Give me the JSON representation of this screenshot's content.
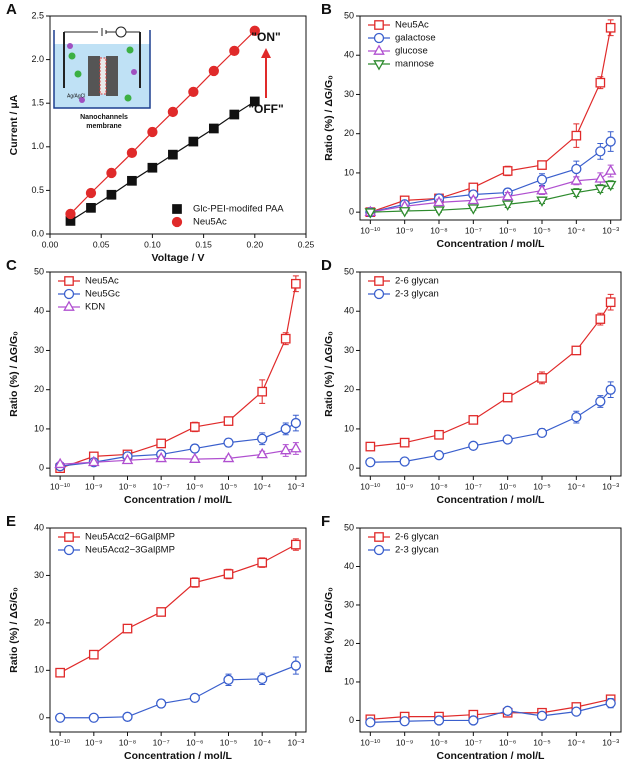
{
  "chart_data": [
    {
      "type": "line",
      "panel": "A",
      "xlabel": "Voltage / V",
      "ylabel": "Current / μA",
      "x": [
        0.02,
        0.04,
        0.06,
        0.08,
        0.1,
        0.12,
        0.14,
        0.16,
        0.18,
        0.2
      ],
      "series": [
        {
          "name": "Glc-PEI-modifed PAA",
          "color": "#111111",
          "marker": "square",
          "values": [
            0.15,
            0.3,
            0.45,
            0.61,
            0.76,
            0.91,
            1.06,
            1.21,
            1.37,
            1.52
          ]
        },
        {
          "name": "Neu5Ac",
          "color": "#e02a2a",
          "marker": "circle",
          "values": [
            0.23,
            0.47,
            0.7,
            0.93,
            1.17,
            1.4,
            1.63,
            1.87,
            2.1,
            2.33
          ]
        }
      ],
      "markers_filled": true,
      "legend": "lower right",
      "xlim": [
        0,
        0.25
      ],
      "xticks": [
        {
          "value": 0,
          "label": "0.00"
        },
        0.05,
        {
          "value": 0.1,
          "label": "0.10"
        },
        0.15,
        {
          "value": 0.2,
          "label": "0.20"
        },
        0.25
      ],
      "ylim": [
        0,
        2.5
      ],
      "yticks": [
        {
          "value": 0,
          "label": "0.0"
        },
        0.5,
        {
          "value": 1,
          "label": "1.0"
        },
        1.5,
        {
          "value": 2,
          "label": "2.0"
        },
        2.5
      ],
      "annotations": [
        "\"ON\"",
        "\"OFF\"",
        "Ag/AgCl",
        "Nanochannels",
        "membrane"
      ]
    },
    {
      "type": "line",
      "panel": "B",
      "xlabel": "Concentration / mol/L",
      "ylabel": "Ratio (%) / ΔG/G₀",
      "xscale": "log",
      "x": [
        1e-10,
        1e-09,
        1e-08,
        1e-07,
        1e-06,
        1e-05,
        0.0001,
        0.0005,
        0.001
      ],
      "series": [
        {
          "name": "Neu5Ac",
          "color": "#e02a2a",
          "marker": "square",
          "values": [
            0,
            3,
            3.5,
            6.3,
            10.5,
            12,
            19.5,
            33,
            47
          ],
          "errors": [
            0.8,
            1,
            1,
            1,
            1.2,
            1,
            3,
            1.5,
            2
          ]
        },
        {
          "name": "galactose",
          "color": "#3a5fcd",
          "marker": "circle",
          "values": [
            0,
            2,
            3.5,
            4.5,
            5,
            8.3,
            11,
            15.5,
            18
          ],
          "errors": [
            0.5,
            0.8,
            1,
            1,
            1,
            1.5,
            2,
            2,
            2.5
          ]
        },
        {
          "name": "glucose",
          "color": "#b050d0",
          "marker": "triangle-up",
          "values": [
            0,
            1.5,
            2.5,
            3,
            4,
            5.5,
            8,
            8.5,
            10.5
          ],
          "errors": [
            0.5,
            0.5,
            0.8,
            0.8,
            1,
            1,
            1,
            1.5,
            1.5
          ]
        },
        {
          "name": "mannose",
          "color": "#2e8b2e",
          "marker": "triangle-down",
          "values": [
            0,
            0.3,
            0.5,
            1,
            2,
            3,
            5,
            6,
            7
          ],
          "errors": [
            0.3,
            0.5,
            0.5,
            0.5,
            0.8,
            0.8,
            1,
            1,
            1
          ]
        }
      ],
      "legend": "upper left",
      "xlim": [
        5e-11,
        0.002
      ],
      "xticks": [
        {
          "value": 1e-10,
          "label": "10⁻¹⁰"
        },
        {
          "value": 1e-09,
          "label": "10⁻⁹"
        },
        {
          "value": 1e-08,
          "label": "10⁻⁸"
        },
        {
          "value": 1e-07,
          "label": "10⁻⁷"
        },
        {
          "value": 1e-06,
          "label": "10⁻⁶"
        },
        {
          "value": 1e-05,
          "label": "10⁻⁵"
        },
        {
          "value": 0.0001,
          "label": "10⁻⁴"
        },
        {
          "value": 0.001,
          "label": "10⁻³"
        }
      ],
      "ylim": [
        -2,
        50
      ],
      "yticks": [
        0,
        10,
        20,
        30,
        40,
        50
      ]
    },
    {
      "type": "line",
      "panel": "C",
      "xlabel": "Concentration / mol/L",
      "ylabel": "Ratio (%) / ΔG/G₀",
      "xscale": "log",
      "x": [
        1e-10,
        1e-09,
        1e-08,
        1e-07,
        1e-06,
        1e-05,
        0.0001,
        0.0005,
        0.001
      ],
      "series": [
        {
          "name": "Neu5Ac",
          "color": "#e02a2a",
          "marker": "square",
          "values": [
            0,
            3,
            3.5,
            6.3,
            10.5,
            12,
            19.5,
            33,
            47
          ],
          "errors": [
            0.8,
            1,
            1,
            1,
            1.2,
            1,
            3,
            1.5,
            2
          ]
        },
        {
          "name": "Neu5Gc",
          "color": "#3a5fcd",
          "marker": "circle",
          "values": [
            0.5,
            1.5,
            3,
            3.5,
            5,
            6.5,
            7.5,
            10,
            11.5
          ],
          "errors": [
            0.5,
            0.5,
            0.8,
            0.8,
            1,
            1,
            1.5,
            1.5,
            2
          ]
        },
        {
          "name": "KDN",
          "color": "#b050d0",
          "marker": "triangle-up",
          "values": [
            1,
            1.5,
            2,
            2.5,
            2.3,
            2.5,
            3.5,
            4.5,
            5
          ],
          "errors": [
            0.5,
            0.5,
            0.5,
            0.5,
            0.5,
            0.5,
            0.8,
            1.5,
            1.5
          ]
        }
      ],
      "legend": "upper left",
      "xlim": [
        5e-11,
        0.002
      ],
      "xticks": [
        {
          "value": 1e-10,
          "label": "10⁻¹⁰"
        },
        {
          "value": 1e-09,
          "label": "10⁻⁹"
        },
        {
          "value": 1e-08,
          "label": "10⁻⁸"
        },
        {
          "value": 1e-07,
          "label": "10⁻⁷"
        },
        {
          "value": 1e-06,
          "label": "10⁻⁶"
        },
        {
          "value": 1e-05,
          "label": "10⁻⁵"
        },
        {
          "value": 0.0001,
          "label": "10⁻⁴"
        },
        {
          "value": 0.001,
          "label": "10⁻³"
        }
      ],
      "ylim": [
        -2,
        50
      ],
      "yticks": [
        0,
        10,
        20,
        30,
        40,
        50
      ]
    },
    {
      "type": "line",
      "panel": "D",
      "xlabel": "Concentration / mol/L",
      "ylabel": "Ratio (%) / ΔG/G₀",
      "xscale": "log",
      "x": [
        1e-10,
        1e-09,
        1e-08,
        1e-07,
        1e-06,
        1e-05,
        0.0001,
        0.0005,
        0.001
      ],
      "series": [
        {
          "name": "2-6 glycan",
          "color": "#e02a2a",
          "marker": "square",
          "values": [
            5.5,
            6.5,
            8.5,
            12.3,
            18,
            23,
            30,
            38,
            42.3
          ],
          "errors": [
            0.8,
            0.8,
            1,
            1,
            1,
            1.5,
            1,
            1.5,
            2
          ]
        },
        {
          "name": "2-3 glycan",
          "color": "#3a5fcd",
          "marker": "circle",
          "values": [
            1.5,
            1.7,
            3.3,
            5.7,
            7.3,
            9,
            13,
            17,
            20
          ],
          "errors": [
            0.5,
            0.5,
            0.5,
            0.8,
            0.8,
            1,
            1.5,
            1.5,
            2
          ]
        }
      ],
      "legend": "upper left",
      "xlim": [
        5e-11,
        0.002
      ],
      "xticks": [
        {
          "value": 1e-10,
          "label": "10⁻¹⁰"
        },
        {
          "value": 1e-09,
          "label": "10⁻⁹"
        },
        {
          "value": 1e-08,
          "label": "10⁻⁸"
        },
        {
          "value": 1e-07,
          "label": "10⁻⁷"
        },
        {
          "value": 1e-06,
          "label": "10⁻⁶"
        },
        {
          "value": 1e-05,
          "label": "10⁻⁵"
        },
        {
          "value": 0.0001,
          "label": "10⁻⁴"
        },
        {
          "value": 0.001,
          "label": "10⁻³"
        }
      ],
      "ylim": [
        -2,
        50
      ],
      "yticks": [
        0,
        10,
        20,
        30,
        40,
        50
      ]
    },
    {
      "type": "line",
      "panel": "E",
      "xlabel": "Concentration / mol/L",
      "ylabel": "Ratio (%) / ΔG/G₀",
      "xscale": "log",
      "x": [
        1e-10,
        1e-09,
        1e-08,
        1e-07,
        1e-06,
        1e-05,
        0.0001,
        0.001
      ],
      "series": [
        {
          "name": "Neu5Acα2−6GalβMP",
          "color": "#e02a2a",
          "marker": "square",
          "values": [
            9.5,
            13.3,
            18.8,
            22.3,
            28.5,
            30.3,
            32.7,
            36.5
          ],
          "errors": [
            0.5,
            0.8,
            0.8,
            0.8,
            1,
            1,
            1,
            1.2
          ]
        },
        {
          "name": "Neu5Acα2−3GalβMP",
          "color": "#3a5fcd",
          "marker": "circle",
          "values": [
            0,
            0,
            0.2,
            3,
            4.2,
            8,
            8.2,
            11
          ],
          "errors": [
            0.5,
            0.5,
            0.5,
            0.8,
            0.8,
            1.2,
            1.2,
            1.8
          ]
        }
      ],
      "legend": "upper left",
      "xlim": [
        5e-11,
        0.002
      ],
      "xticks": [
        {
          "value": 1e-10,
          "label": "10⁻¹⁰"
        },
        {
          "value": 1e-09,
          "label": "10⁻⁹"
        },
        {
          "value": 1e-08,
          "label": "10⁻⁸"
        },
        {
          "value": 1e-07,
          "label": "10⁻⁷"
        },
        {
          "value": 1e-06,
          "label": "10⁻⁶"
        },
        {
          "value": 1e-05,
          "label": "10⁻⁵"
        },
        {
          "value": 0.0001,
          "label": "10⁻⁴"
        },
        {
          "value": 0.001,
          "label": "10⁻³"
        }
      ],
      "ylim": [
        -3,
        40
      ],
      "yticks": [
        0,
        10,
        20,
        30,
        40
      ]
    },
    {
      "type": "line",
      "panel": "F",
      "xlabel": "Concentration / mol/L",
      "ylabel": "Ratio (%) / ΔG/G₀",
      "xscale": "log",
      "x": [
        1e-10,
        1e-09,
        1e-08,
        1e-07,
        1e-06,
        1e-05,
        0.0001,
        0.001
      ],
      "series": [
        {
          "name": "2-6 glycan",
          "color": "#e02a2a",
          "marker": "square",
          "values": [
            0.3,
            1,
            1,
            1.5,
            2,
            2,
            3.5,
            5.5
          ],
          "errors": [
            0.5,
            0.5,
            0.5,
            0.5,
            0.8,
            0.5,
            0.8,
            1
          ]
        },
        {
          "name": "2-3 glycan",
          "color": "#3a5fcd",
          "marker": "circle",
          "values": [
            -0.5,
            -0.2,
            0,
            0,
            2.5,
            1.2,
            2.3,
            4.5
          ],
          "errors": [
            0.5,
            0.5,
            0.5,
            0.5,
            0.8,
            0.8,
            0.8,
            1.2
          ]
        }
      ],
      "legend": "upper left",
      "xlim": [
        5e-11,
        0.002
      ],
      "xticks": [
        {
          "value": 1e-10,
          "label": "10⁻¹⁰"
        },
        {
          "value": 1e-09,
          "label": "10⁻⁹"
        },
        {
          "value": 1e-08,
          "label": "10⁻⁸"
        },
        {
          "value": 1e-07,
          "label": "10⁻⁷"
        },
        {
          "value": 1e-06,
          "label": "10⁻⁶"
        },
        {
          "value": 1e-05,
          "label": "10⁻⁵"
        },
        {
          "value": 0.0001,
          "label": "10⁻⁴"
        },
        {
          "value": 0.001,
          "label": "10⁻³"
        }
      ],
      "ylim": [
        -3,
        50
      ],
      "yticks": [
        0,
        10,
        20,
        30,
        40,
        50
      ]
    }
  ]
}
